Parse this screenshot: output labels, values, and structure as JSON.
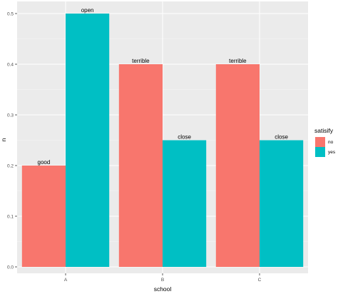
{
  "chart_data": {
    "type": "bar",
    "categories": [
      "A",
      "B",
      "C"
    ],
    "series": [
      {
        "name": "no",
        "values": [
          0.2,
          0.4,
          0.4
        ],
        "labels": [
          "good",
          "terrible",
          "terrible"
        ],
        "color": "#F8766D"
      },
      {
        "name": "yes",
        "values": [
          0.5,
          0.25,
          0.25
        ],
        "labels": [
          "open",
          "close",
          "close"
        ],
        "color": "#00BFC4"
      }
    ],
    "xlabel": "school",
    "ylabel": "n",
    "ylim": [
      0,
      0.5
    ],
    "yticks": [
      "0.0",
      "0.1",
      "0.2",
      "0.3",
      "0.4",
      "0.5"
    ],
    "legend": {
      "title": "satisify",
      "position": "right"
    },
    "grid": true,
    "panel_background": "#EBEBEB"
  }
}
